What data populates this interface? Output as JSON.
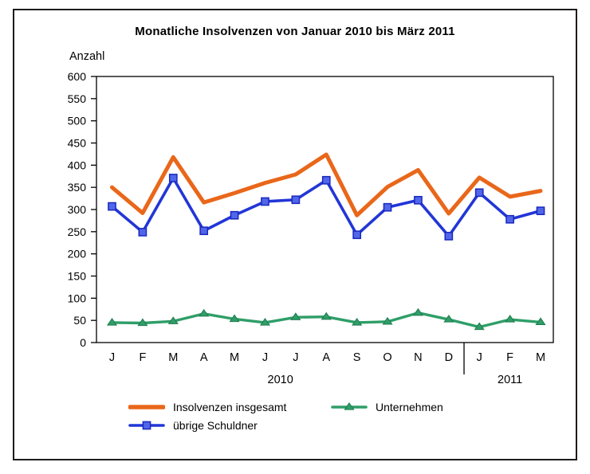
{
  "title": "Monatliche Insolvenzen von Januar 2010 bis März 2011",
  "y_axis_label": "Anzahl",
  "colors": {
    "background": "#ffffff",
    "frame_border": "#1b1b1b",
    "axis": "#000000",
    "total_line": "#e9671a",
    "debtors_line": "#2236d6",
    "debtors_marker_fill": "#5166e8",
    "debtors_marker_stroke": "#1828c0",
    "companies_line": "#2f9e68",
    "companies_marker_stroke": "#1e7a4e"
  },
  "chart_data": {
    "type": "line",
    "title": "Monatliche Insolvenzen von Januar 2010 bis März 2011",
    "xlabel": "",
    "ylabel": "Anzahl",
    "ylim": [
      0,
      600
    ],
    "ytick_step": 50,
    "grid": "off",
    "legend_position": "bottom",
    "categories": [
      "J",
      "F",
      "M",
      "A",
      "M",
      "J",
      "J",
      "A",
      "S",
      "O",
      "N",
      "D",
      "J",
      "F",
      "M"
    ],
    "year_groups": [
      {
        "label": "2010",
        "start": 0,
        "end": 11
      },
      {
        "label": "2011",
        "start": 12,
        "end": 14
      }
    ],
    "series": [
      {
        "name": "Insolvenzen insgesamt",
        "color": "#e9671a",
        "marker": "none",
        "line_width": 5,
        "values": [
          350,
          292,
          418,
          316,
          337,
          360,
          379,
          424,
          287,
          351,
          389,
          291,
          372,
          329,
          342
        ]
      },
      {
        "name": "übrige Schuldner",
        "color": "#2236d6",
        "marker": "square",
        "marker_fill": "#5166e8",
        "marker_stroke": "#1828c0",
        "line_width": 3.6,
        "values": [
          307,
          249,
          371,
          252,
          287,
          318,
          322,
          366,
          243,
          305,
          321,
          240,
          338,
          278,
          297
        ]
      },
      {
        "name": "Unternehmen",
        "color": "#2f9e68",
        "marker": "triangle",
        "marker_fill": "#2f9e68",
        "marker_stroke": "#1e7a4e",
        "line_width": 3.4,
        "values": [
          45,
          44,
          48,
          65,
          53,
          45,
          57,
          58,
          45,
          47,
          67,
          52,
          35,
          52,
          46
        ]
      }
    ],
    "legend_order": [
      0,
      2,
      1
    ]
  }
}
